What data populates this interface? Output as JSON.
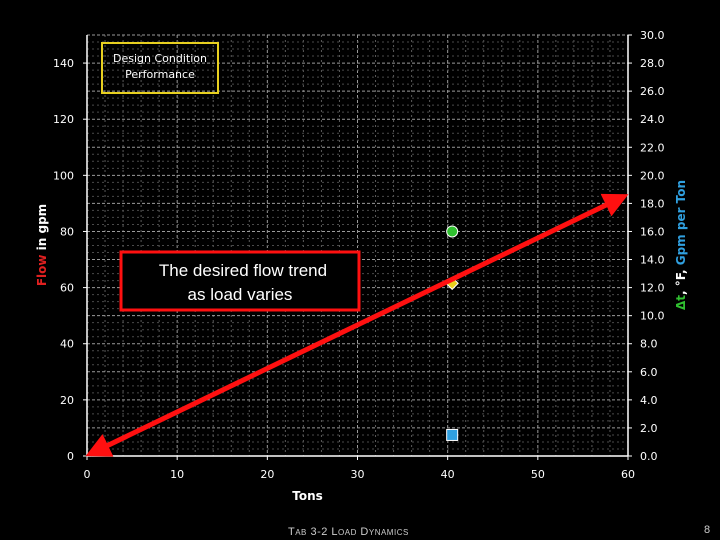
{
  "footer": {
    "title": "Tab 3-2 Load Dynamics",
    "page_number": "8"
  },
  "chart_data": {
    "type": "scatter",
    "xlabel": "Tons",
    "ylabel_left": {
      "parts": [
        {
          "text": "Flow",
          "color": "#e02020"
        },
        {
          "text": " in gpm",
          "color": "#ffffff"
        }
      ]
    },
    "ylabel_right": {
      "parts": [
        {
          "text": "Δt",
          "color": "#30c030"
        },
        {
          "text": ", °F, ",
          "color": "#ffffff"
        },
        {
          "text": "Gpm per Ton",
          "color": "#30a0e0"
        }
      ]
    },
    "xlim": [
      0,
      60
    ],
    "ylim_left": [
      0,
      150
    ],
    "ylim_right": [
      0,
      30
    ],
    "x_ticks": [
      "0",
      "10",
      "20",
      "30",
      "40",
      "50",
      "60"
    ],
    "y_left_ticks": [
      "0",
      "20",
      "40",
      "60",
      "80",
      "100",
      "120",
      "140"
    ],
    "y_right_ticks": [
      "0.0",
      "2.0",
      "4.0",
      "6.0",
      "8.0",
      "10.0",
      "12.0",
      "14.0",
      "16.0",
      "18.0",
      "20.0",
      "22.0",
      "24.0",
      "26.0",
      "28.0",
      "30.0"
    ],
    "grid": true,
    "legend": {
      "lines": [
        "Design Condition",
        "Performance"
      ],
      "border_color": "#e8d020"
    },
    "points": [
      {
        "x": 40.5,
        "y_right": 16.0,
        "shape": "circle",
        "color": "#30c030"
      },
      {
        "x": 40.5,
        "y_right": 12.3,
        "shape": "diamond",
        "color": "#e8d020"
      },
      {
        "x": 40.5,
        "y_right": 1.5,
        "shape": "square",
        "color": "#30a0e0"
      }
    ],
    "trend_arrow": {
      "from": [
        0,
        0
      ],
      "to": [
        60,
        18.5
      ],
      "color": "#ff1010",
      "double_headed": true
    },
    "annotation": {
      "lines": [
        "The desired flow  trend",
        "as load varies"
      ],
      "border_color": "#ff1010"
    }
  }
}
